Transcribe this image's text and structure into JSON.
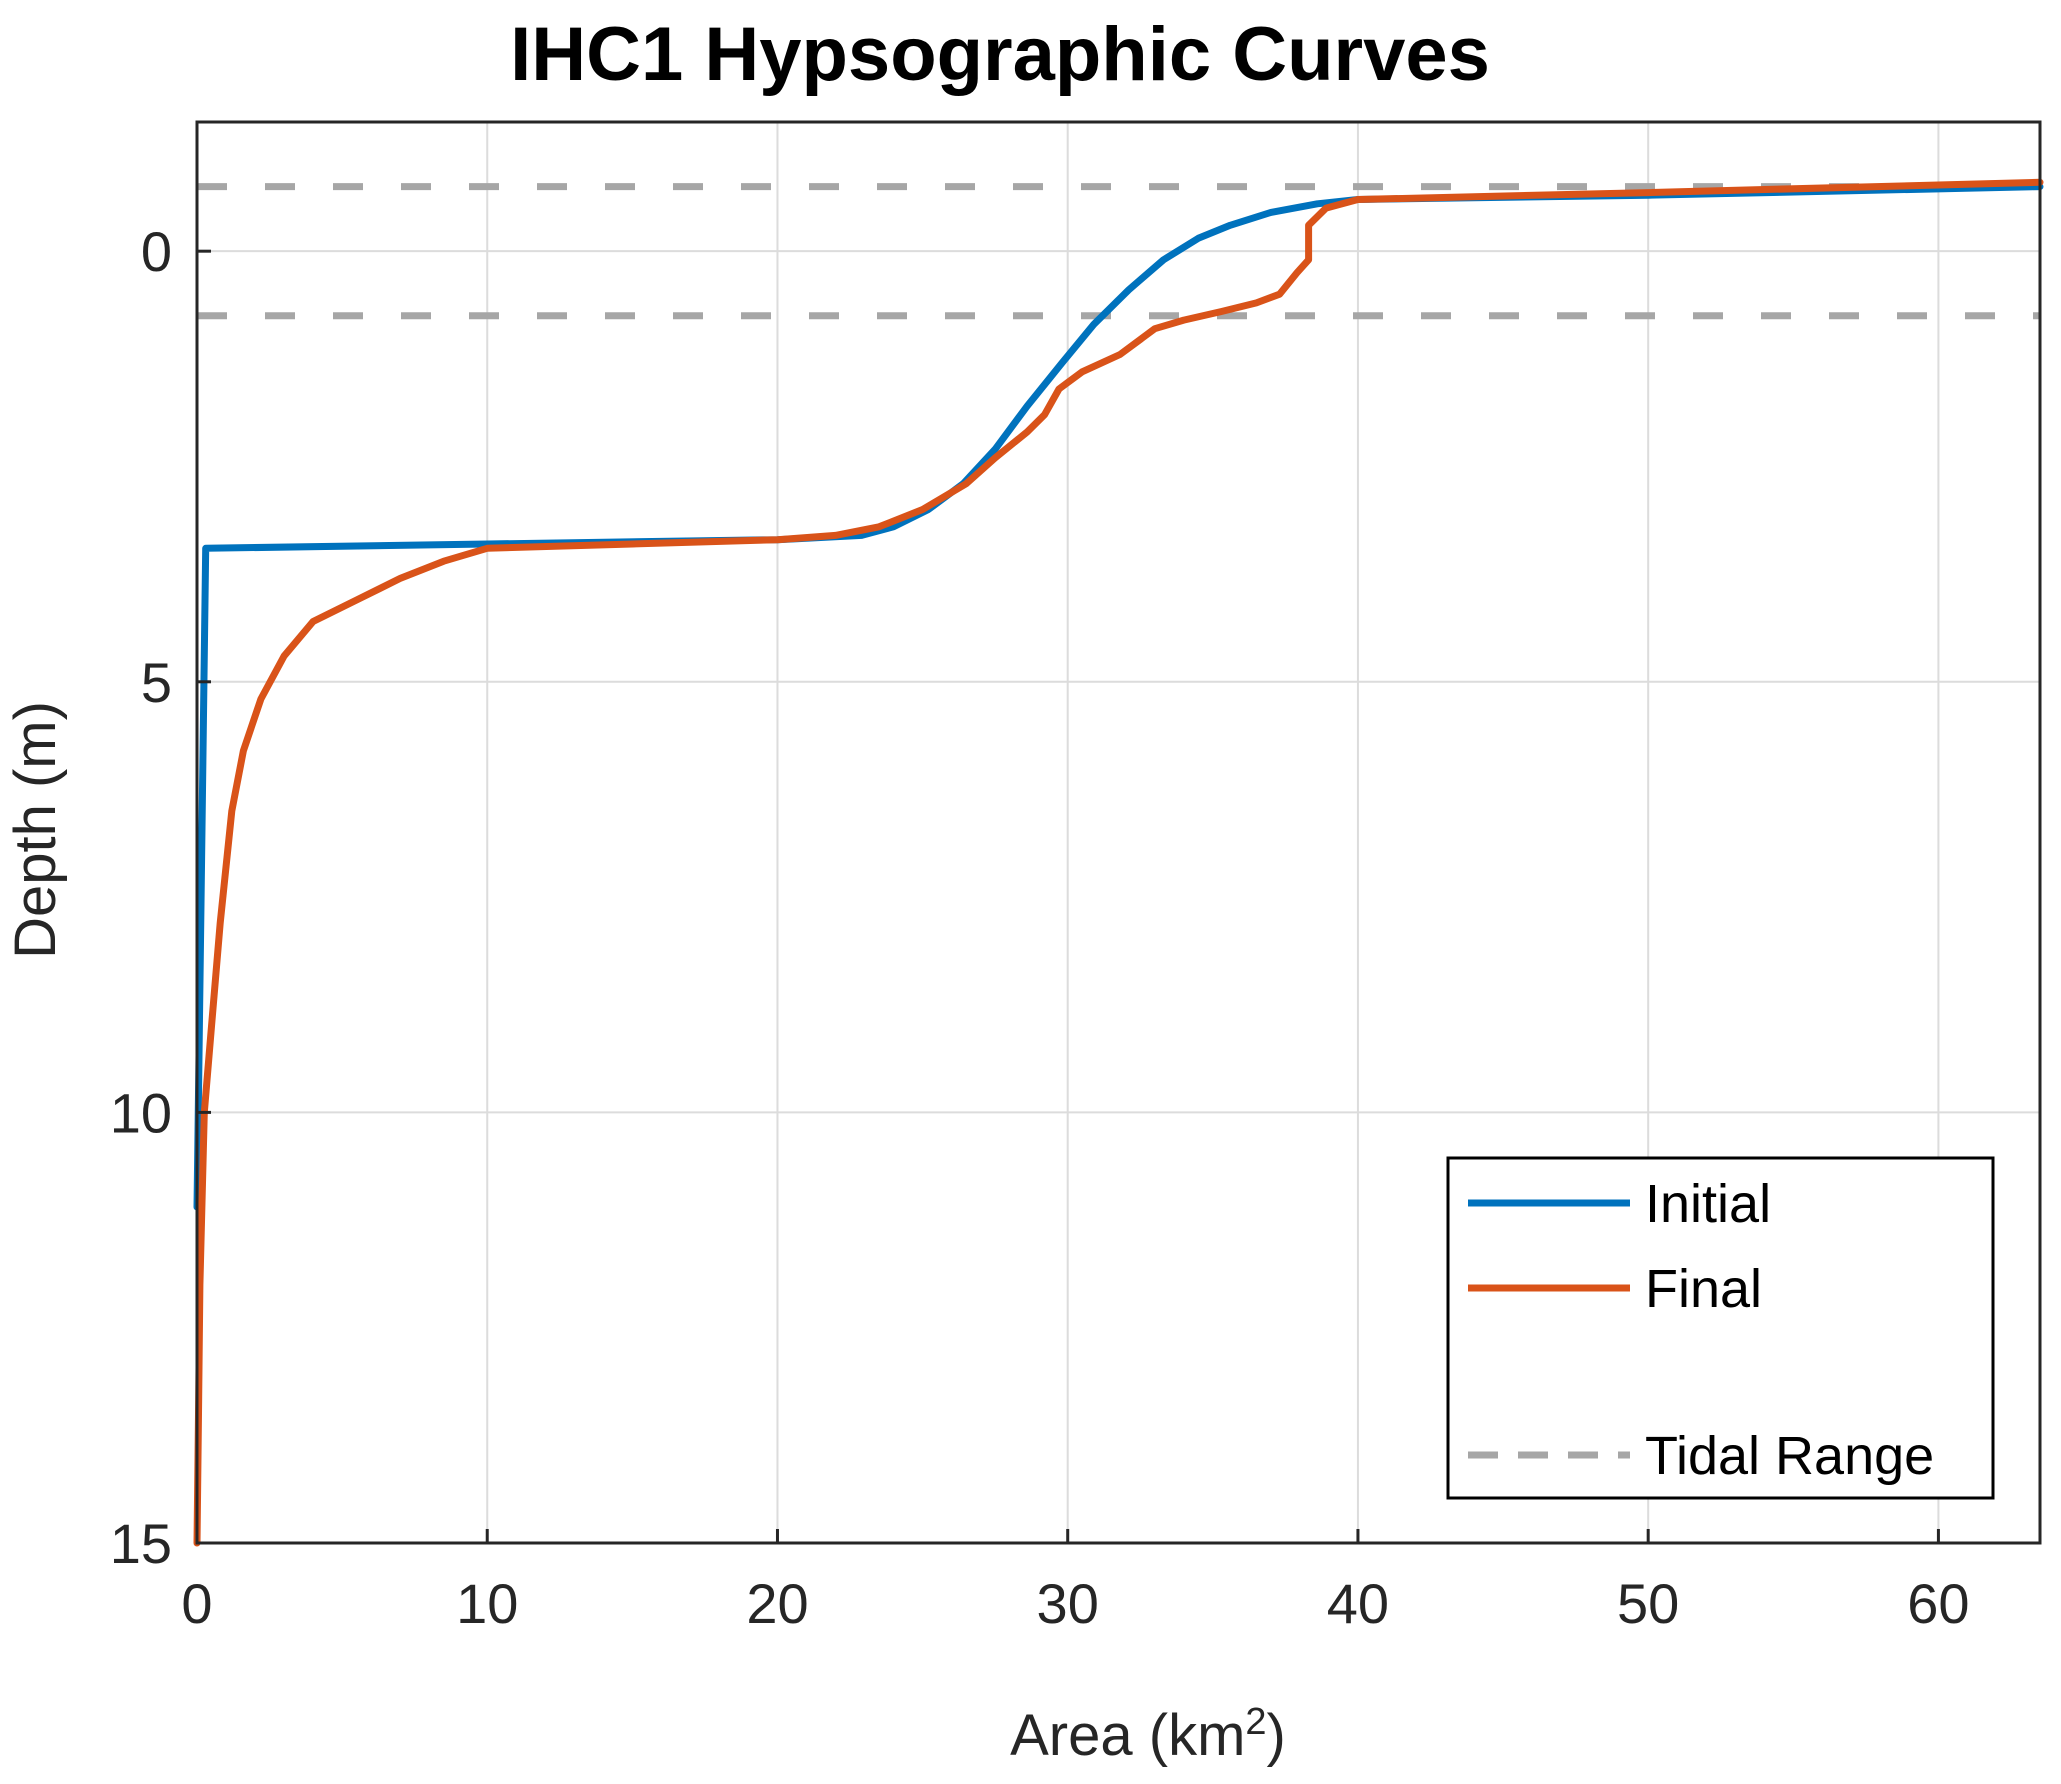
{
  "chart_data": {
    "type": "line",
    "title": "IHC1 Hypsographic Curves",
    "xlabel_main": "Area (km",
    "xlabel_sup": "2",
    "xlabel_close": ")",
    "ylabel": "Depth (m)",
    "xlim": [
      0,
      63.5
    ],
    "ylim": [
      -1.5,
      15
    ],
    "y_reversed": true,
    "grid": true,
    "xticks": [
      0,
      10,
      20,
      30,
      40,
      50,
      60
    ],
    "xtick_labels": [
      "0",
      "10",
      "20",
      "30",
      "40",
      "50",
      "60"
    ],
    "yticks": [
      0,
      5,
      10,
      15
    ],
    "ytick_labels": [
      "0",
      "5",
      "10",
      "15"
    ],
    "legend_position": "bottom-right",
    "series": [
      {
        "name": "Initial",
        "color": "#0072BD",
        "style": "solid",
        "points": [
          [
            0,
            11.1
          ],
          [
            0.3,
            3.45
          ],
          [
            10,
            3.4
          ],
          [
            20,
            3.35
          ],
          [
            22.9,
            3.3
          ],
          [
            24,
            3.2
          ],
          [
            25.2,
            3.0
          ],
          [
            26.4,
            2.7
          ],
          [
            27.5,
            2.3
          ],
          [
            28.6,
            1.8
          ],
          [
            29.8,
            1.3
          ],
          [
            30.9,
            0.85
          ],
          [
            32.1,
            0.45
          ],
          [
            33.3,
            0.1
          ],
          [
            34.5,
            -0.15
          ],
          [
            35.6,
            -0.3
          ],
          [
            37,
            -0.45
          ],
          [
            38.6,
            -0.55
          ],
          [
            40,
            -0.6
          ],
          [
            50,
            -0.65
          ],
          [
            63.5,
            -0.75
          ]
        ]
      },
      {
        "name": "Final",
        "color": "#D95319",
        "style": "solid",
        "points": [
          [
            0,
            15
          ],
          [
            0.05,
            13.5
          ],
          [
            0.1,
            12.0
          ],
          [
            0.25,
            10.0
          ],
          [
            0.5,
            9.0
          ],
          [
            0.8,
            7.8
          ],
          [
            1.2,
            6.5
          ],
          [
            1.6,
            5.8
          ],
          [
            2.2,
            5.2
          ],
          [
            3.0,
            4.7
          ],
          [
            4.0,
            4.3
          ],
          [
            5.5,
            4.05
          ],
          [
            7.0,
            3.8
          ],
          [
            8.5,
            3.6
          ],
          [
            10.0,
            3.45
          ],
          [
            15,
            3.4
          ],
          [
            20,
            3.35
          ],
          [
            22,
            3.3
          ],
          [
            23.5,
            3.2
          ],
          [
            25,
            3.0
          ],
          [
            26.5,
            2.7
          ],
          [
            27.5,
            2.4
          ],
          [
            28.6,
            2.1
          ],
          [
            29.2,
            1.9
          ],
          [
            29.7,
            1.6
          ],
          [
            30.5,
            1.4
          ],
          [
            31.8,
            1.2
          ],
          [
            33,
            0.9
          ],
          [
            34,
            0.8
          ],
          [
            35.3,
            0.7
          ],
          [
            36.5,
            0.6
          ],
          [
            37.3,
            0.5
          ],
          [
            37.9,
            0.25
          ],
          [
            38.3,
            0.1
          ],
          [
            38.3,
            -0.3
          ],
          [
            38.9,
            -0.5
          ],
          [
            40,
            -0.6
          ],
          [
            50,
            -0.68
          ],
          [
            63.5,
            -0.8
          ]
        ]
      },
      {
        "name": "Tidal Range",
        "color": "#A6A6A6",
        "style": "dashed",
        "lines": [
          -0.75,
          0.75
        ]
      }
    ]
  }
}
